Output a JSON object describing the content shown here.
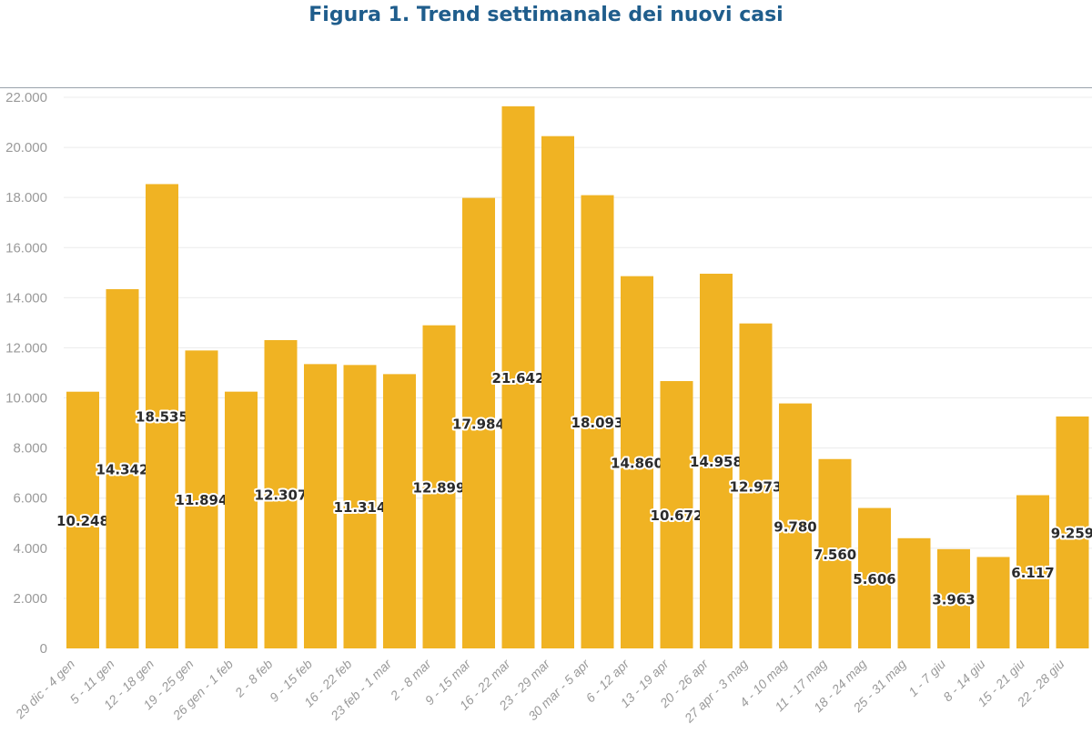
{
  "chart_data": {
    "type": "bar",
    "title": "Figura 1. Trend settimanale dei nuovi casi",
    "xlabel": "",
    "ylabel": "",
    "ylim": [
      0,
      22000
    ],
    "yticks": [
      "0",
      "2.000",
      "4.000",
      "6.000",
      "8.000",
      "10.000",
      "12.000",
      "14.000",
      "16.000",
      "18.000",
      "20.000",
      "22.000"
    ],
    "grid": true,
    "bar_color": "#f0b323",
    "categories": [
      "29 dic - 4 gen",
      "5 - 11 gen",
      "12 - 18 gen",
      "19 - 25 gen",
      "26 gen - 1 feb",
      "2 - 8 feb",
      "9 - 15 feb",
      "16 - 22 feb",
      "23 feb - 1 mar",
      "2 - 8 mar",
      "9 - 15 mar",
      "16 - 22 mar",
      "23 - 29 mar",
      "30 mar - 5 apr",
      "6 - 12 apr",
      "13 - 19 apr",
      "20 - 26 apr",
      "27 apr - 3 mag",
      "4 - 10 mag",
      "11 - 17 mag",
      "18 - 24 mag",
      "25 - 31 mag",
      "1 - 7 giu",
      "8 - 14 giu",
      "15 - 21 giu",
      "22 - 28 giu"
    ],
    "values": [
      10248,
      14342,
      18535,
      11894,
      10250,
      12307,
      11350,
      11314,
      10950,
      12899,
      17984,
      21642,
      20450,
      18093,
      14860,
      10672,
      14958,
      12973,
      9780,
      7560,
      5606,
      4400,
      3963,
      3650,
      6117,
      9259
    ],
    "data_labels": [
      "10.248",
      "14.342",
      "18.535",
      "11.894",
      null,
      "12.307",
      null,
      "11.314",
      null,
      "12.899",
      "17.984",
      "21.642",
      null,
      "18.093",
      "14.860",
      "10.672",
      "14.958",
      "12.973",
      "9.780",
      "7.560",
      "5.606",
      null,
      "3.963",
      null,
      "6.117",
      "9.259"
    ]
  }
}
